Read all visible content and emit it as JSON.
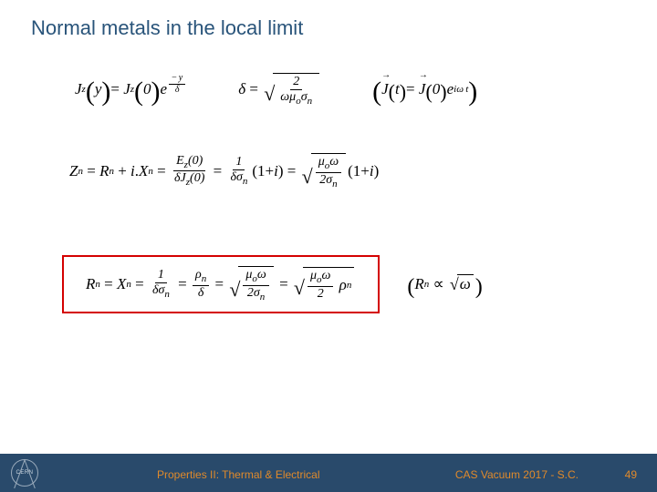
{
  "title": "Normal metals in the local limit",
  "eq1a": {
    "Jz": "J",
    "z": "z",
    "y": "y",
    "zero": "0",
    "e": "e",
    "minus": "−",
    "delta": "δ"
  },
  "eq1b": {
    "delta": "δ",
    "eq": "=",
    "two": "2",
    "omega": "ω",
    "mu": "μ",
    "o": "o",
    "sigma": "σ",
    "n": "n"
  },
  "eq1c": {
    "J": "J",
    "t": "t",
    "zero": "0",
    "e": "e",
    "i": "i",
    "omega": "ω"
  },
  "eq2": {
    "Zn": "Z",
    "n": "n",
    "Rn": "R",
    "plus": "+",
    "i": "i",
    "dot": ".",
    "Xn": "X",
    "Ez": "E",
    "z": "z",
    "zero": "0",
    "delta": "δ",
    "Jz": "J",
    "one": "1",
    "sigma": "σ",
    "mu": "μ",
    "o": "o",
    "omega": "ω",
    "two": "2"
  },
  "eq3": {
    "Rn": "R",
    "n": "n",
    "Xn": "X",
    "one": "1",
    "delta": "δ",
    "sigma": "σ",
    "rho": "ρ",
    "mu": "μ",
    "o": "o",
    "omega": "ω",
    "two": "2",
    "prop": "∝",
    "sqrt_om": "ω"
  },
  "footer": {
    "left": "Properties II: Thermal & Electrical",
    "right": "CAS Vacuum 2017 - S.C.",
    "page": "49",
    "logo_text": "CERN"
  },
  "colors": {
    "title": "#29547a",
    "box_border": "#d40000",
    "footer_bg": "#294a6b",
    "footer_text": "#e08a2b"
  }
}
